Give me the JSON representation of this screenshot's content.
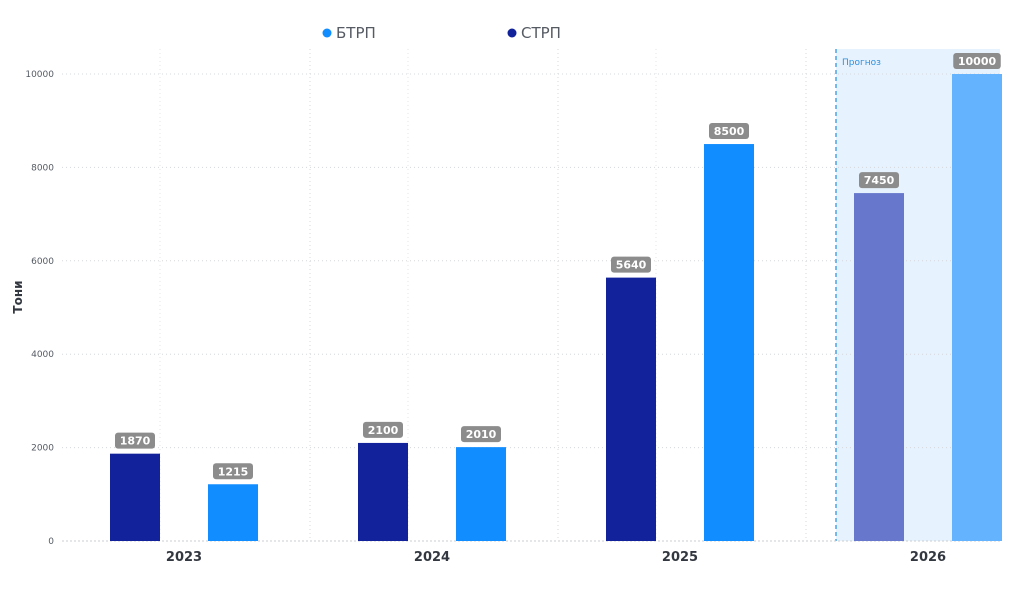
{
  "chart_data": {
    "type": "bar",
    "categories": [
      "2023",
      "2024",
      "2025",
      "2026"
    ],
    "series": [
      {
        "name": "СТРП",
        "color": "#11229b",
        "forecast_color": "#6677cc",
        "values": [
          1870,
          2100,
          5640,
          7450
        ]
      },
      {
        "name": "БТРП",
        "color": "#118dff",
        "forecast_color": "#63b3ff",
        "values": [
          1215,
          2010,
          8500,
          10000
        ]
      }
    ],
    "legend": [
      {
        "name": "БТРП",
        "color": "#118dff"
      },
      {
        "name": "СТРП",
        "color": "#11229b"
      }
    ],
    "ylabel": "Тони",
    "xlabel": "",
    "ylim": [
      0,
      10000
    ],
    "yticks": [
      0,
      2000,
      4000,
      6000,
      8000,
      10000
    ],
    "grid": true,
    "legend_position": "top-center",
    "data_label_bg": "#8c8c8c",
    "forecast": {
      "label": "Прогноз",
      "from_category": "2026",
      "background": "#e6f2fd",
      "line_color": "#4aa3e8"
    }
  }
}
